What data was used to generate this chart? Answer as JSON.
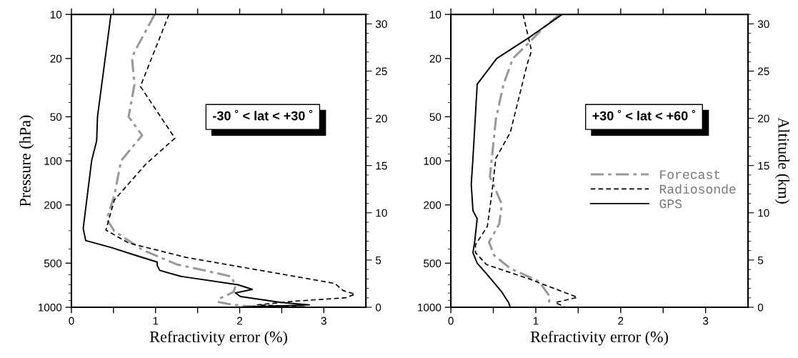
{
  "chart_data": [
    {
      "type": "line",
      "xlabel": "Refractivity error (%)",
      "ylabel": "Pressure (hPa)",
      "log": "y",
      "grid": false,
      "legend": false,
      "marker": "none",
      "xlim": [
        0,
        3.5
      ],
      "xticks": [
        0,
        {
          "value": 0.5,
          "label": null
        },
        1,
        {
          "value": 1.5,
          "label": null
        },
        2,
        {
          "value": 2.5,
          "label": null
        },
        3
      ],
      "ylim": [
        1000,
        10
      ],
      "yticks": [
        10,
        20,
        50,
        100,
        200,
        500,
        1000
      ],
      "y2lim": [
        0,
        31
      ],
      "y2ticks": [
        0,
        5,
        10,
        15,
        20,
        25,
        30
      ],
      "annotations": [
        "-30 ˚ < lat < +30 ˚"
      ],
      "series": [
        {
          "color": "#999999",
          "line_style": "dashdot",
          "x": [
            0.99,
            0.75,
            0.72,
            0.75,
            0.68,
            0.84,
            0.59,
            0.51,
            0.42,
            0.51,
            0.85,
            1.25,
            1.9,
            1.95,
            1.93,
            1.78,
            1.74,
            1.93,
            2.07,
            2.78
          ],
          "values": [
            10,
            18,
            20,
            30,
            50,
            67,
            100,
            172,
            250,
            302,
            407,
            509,
            615,
            714,
            784,
            861,
            920,
            963,
            981,
            995
          ]
        },
        {
          "color": "#000000",
          "line_style": "dashed",
          "x": [
            1.16,
            0.82,
            1.23,
            0.88,
            0.51,
            0.41,
            0.68,
            1.36,
            3.13,
            3.23,
            3.37,
            3.26,
            2.63,
            2.21,
            2.78
          ],
          "values": [
            10,
            31,
            70,
            106,
            185,
            297,
            364,
            456,
            687,
            769,
            814,
            861,
            911,
            963,
            996
          ]
        },
        {
          "color": "#000000",
          "line_style": "solid",
          "x": [
            0.47,
            0.31,
            0.3,
            0.24,
            0.14,
            0.17,
            0.48,
            0.74,
            1.02,
            1.02,
            1.05,
            1.3,
            1.98,
            2.15,
            1.95,
            2.01,
            2.49,
            2.83,
            2.49,
            1.98
          ],
          "values": [
            10,
            50,
            73,
            100,
            290,
            350,
            392,
            438,
            491,
            519,
            560,
            615,
            702,
            755,
            798,
            845,
            927,
            963,
            978,
            1000
          ]
        }
      ]
    },
    {
      "type": "line",
      "xlabel": "Refractivity error (%)",
      "y2label": "Altitude (km)",
      "log": "y",
      "grid": false,
      "legend": "right",
      "marker": "none",
      "xlim": [
        0,
        3.5
      ],
      "xticks": [
        0,
        {
          "value": 0.5,
          "label": null
        },
        1,
        {
          "value": 1.5,
          "label": null
        },
        2,
        {
          "value": 2.5,
          "label": null
        },
        3
      ],
      "ylim": [
        1000,
        10
      ],
      "yticks": [
        10,
        20,
        50,
        100,
        200,
        500,
        1000
      ],
      "y2lim": [
        0,
        31
      ],
      "y2ticks": [
        0,
        5,
        10,
        15,
        20,
        25,
        30
      ],
      "annotations": [
        "+30 ˚ < lat < +60 ˚"
      ],
      "series": [
        {
          "name": "Forecast",
          "color": "#999999",
          "line_style": "dashdot",
          "x": [
            1.28,
            1.1,
            0.92,
            0.73,
            0.62,
            0.53,
            0.46,
            0.6,
            0.57,
            0.45,
            0.51,
            0.7,
            1.04,
            1.17,
            1.14
          ],
          "values": [
            10,
            12.2,
            15.6,
            20,
            30,
            52,
            128,
            198,
            269,
            359,
            442,
            543,
            667,
            855,
            988
          ]
        },
        {
          "name": "Radiosonde",
          "color": "#000000",
          "line_style": "dashed",
          "x": [
            0.85,
            0.95,
            0.9,
            0.7,
            0.53,
            0.48,
            0.43,
            0.29,
            0.29,
            0.42,
            0.92,
            1.49,
            1.23,
            1.35
          ],
          "values": [
            10,
            17.7,
            21.7,
            64,
            96,
            171,
            280,
            374,
            424,
            511,
            640,
            855,
            929,
            1000
          ]
        },
        {
          "name": "GPS",
          "color": "#000000",
          "line_style": "solid",
          "x": [
            1.31,
            0.92,
            0.54,
            0.31,
            0.26,
            0.24,
            0.26,
            0.31,
            0.28,
            0.26,
            0.31,
            0.42,
            0.6,
            0.68,
            0.7
          ],
          "values": [
            10,
            14.4,
            20,
            30,
            96,
            145,
            219,
            248,
            359,
            424,
            500,
            590,
            787,
            929,
            1000
          ]
        }
      ]
    }
  ]
}
